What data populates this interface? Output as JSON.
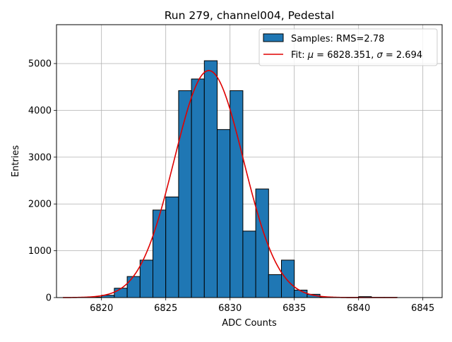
{
  "chart_data": {
    "type": "bar",
    "title": "Run 279, channel004, Pedestal",
    "xlabel": "ADC Counts",
    "ylabel": "Entries",
    "xlim": [
      6816.5,
      6846.5
    ],
    "ylim": [
      0,
      5830
    ],
    "grid": true,
    "legend_position": "top-right",
    "x_ticks": [
      6820,
      6825,
      6830,
      6835,
      6840,
      6845
    ],
    "y_ticks": [
      0,
      1000,
      2000,
      3000,
      4000,
      5000
    ],
    "histogram": {
      "name": "Samples: RMS=2.78",
      "bin_width": 1,
      "bin_starts": [
        6819,
        6820,
        6821,
        6822,
        6823,
        6824,
        6825,
        6826,
        6827,
        6828,
        6829,
        6830,
        6831,
        6832,
        6833,
        6834,
        6835,
        6836,
        6837,
        6838,
        6839,
        6840,
        6841,
        6842
      ],
      "counts": [
        10,
        50,
        200,
        450,
        800,
        1870,
        2150,
        4420,
        4670,
        5060,
        3590,
        4420,
        1420,
        2320,
        490,
        800,
        160,
        70,
        10,
        5,
        5,
        20,
        5,
        5
      ],
      "color": "#1f77b4"
    },
    "fit": {
      "name_prefix": "Fit: ",
      "mu_symbol": "μ",
      "mu_text": " = 6828.351, ",
      "sigma_symbol": "σ",
      "sigma_text": " = 2.694",
      "mu": 6828.351,
      "sigma": 2.694,
      "amplitude": 4850,
      "x_range": [
        6817,
        6843
      ],
      "color": "#e00000"
    }
  }
}
